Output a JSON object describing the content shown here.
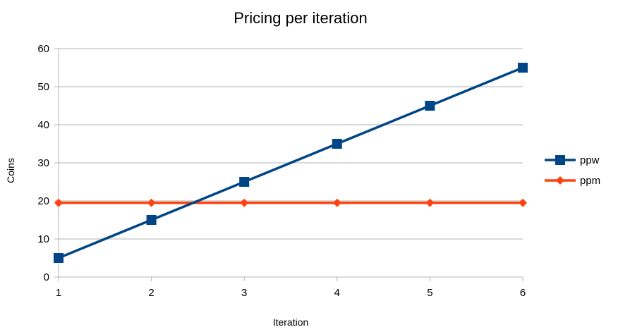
{
  "chart_data": {
    "type": "line",
    "title": "Pricing per iteration",
    "xlabel": "Iteration",
    "ylabel": "Coins",
    "categories": [
      1,
      2,
      3,
      4,
      5,
      6
    ],
    "ylim": [
      0,
      60
    ],
    "yticks": [
      0,
      10,
      20,
      30,
      40,
      50,
      60
    ],
    "grid": true,
    "legend_position": "right",
    "series": [
      {
        "name": "ppw",
        "values": [
          5,
          15,
          25,
          35,
          45,
          55
        ],
        "color": "#004586",
        "marker": "square"
      },
      {
        "name": "ppm",
        "values": [
          19.5,
          19.5,
          19.5,
          19.5,
          19.5,
          19.5
        ],
        "color": "#ff420e",
        "marker": "diamond"
      }
    ]
  }
}
